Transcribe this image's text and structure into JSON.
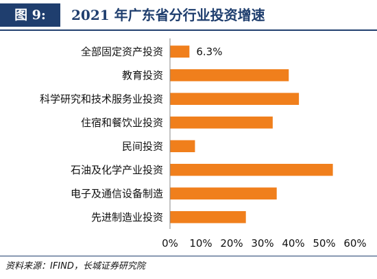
{
  "header": {
    "figure_number": "图 9:",
    "title": "2021 年广东省分行业投资增速"
  },
  "chart_data": {
    "type": "bar",
    "orientation": "horizontal",
    "categories": [
      "全部固定资产投资",
      "教育投资",
      "科学研究和技术服务业投资",
      "住宿和餐饮业投资",
      "民间投资",
      "石油及化学产业投资",
      "电子及通信设备制造",
      "先进制造业投资"
    ],
    "values": [
      6.3,
      38.5,
      41.8,
      33.3,
      8.1,
      52.8,
      34.6,
      24.6
    ],
    "data_labels": [
      "6.3%",
      "",
      "",
      "",
      "",
      "",
      "",
      ""
    ],
    "xlim": [
      0,
      60
    ],
    "xticks": [
      0,
      10,
      20,
      30,
      40,
      50,
      60
    ],
    "xtick_labels": [
      "0%",
      "10%",
      "20%",
      "30%",
      "40%",
      "50%",
      "60%"
    ],
    "bar_color": "#f07f1c",
    "grid": false,
    "legend": "none"
  },
  "source": "资料来源：IFIND，长城证券研究院"
}
